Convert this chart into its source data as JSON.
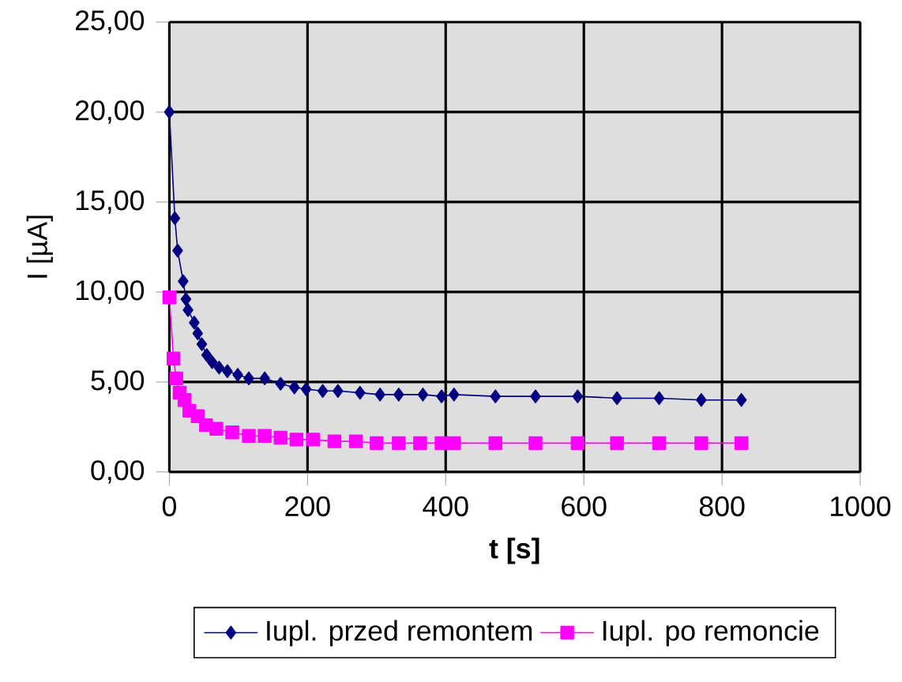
{
  "chart_data": {
    "type": "line",
    "xlabel": "t [s]",
    "ylabel": "I [µA]",
    "xlim": [
      0,
      1000
    ],
    "xticks": [
      0,
      200,
      400,
      600,
      800,
      1000
    ],
    "ylim": [
      0,
      25
    ],
    "yticks": [
      {
        "value": 0,
        "label": "0,00"
      },
      {
        "value": 5,
        "label": "5,00"
      },
      {
        "value": 10,
        "label": "10,00"
      },
      {
        "value": 15,
        "label": "15,00"
      },
      {
        "value": 20,
        "label": "20,00"
      },
      {
        "value": 25,
        "label": "25,00"
      }
    ],
    "grid": true,
    "legend": "bottom",
    "series": [
      {
        "name": "Iupl. przed remontem",
        "color": "#000080",
        "marker": "diamond",
        "x": [
          0,
          8,
          12,
          20,
          24,
          27,
          36,
          41,
          47,
          54,
          62,
          72,
          84,
          99,
          115,
          138,
          161,
          181,
          198,
          222,
          244,
          276,
          305,
          332,
          367,
          394,
          412,
          472,
          530,
          591,
          648,
          709,
          770,
          828
        ],
        "values": [
          20.0,
          14.1,
          12.3,
          10.6,
          9.6,
          9.0,
          8.3,
          7.7,
          7.1,
          6.5,
          6.1,
          5.8,
          5.6,
          5.4,
          5.2,
          5.2,
          4.9,
          4.7,
          4.6,
          4.5,
          4.5,
          4.4,
          4.3,
          4.3,
          4.3,
          4.2,
          4.3,
          4.2,
          4.2,
          4.2,
          4.1,
          4.1,
          4.0,
          4.0
        ]
      },
      {
        "name": "Iupl. po remoncie",
        "color": "#ff00ff",
        "marker": "square",
        "x": [
          0,
          6,
          10,
          15,
          22,
          29,
          41,
          53,
          68,
          91,
          115,
          138,
          161,
          184,
          208,
          239,
          270,
          300,
          332,
          363,
          394,
          412,
          472,
          530,
          591,
          648,
          709,
          770,
          828
        ],
        "values": [
          9.7,
          6.3,
          5.2,
          4.4,
          4.0,
          3.4,
          3.1,
          2.6,
          2.4,
          2.2,
          2.0,
          2.0,
          1.9,
          1.8,
          1.8,
          1.7,
          1.7,
          1.6,
          1.6,
          1.6,
          1.6,
          1.6,
          1.6,
          1.6,
          1.6,
          1.6,
          1.6,
          1.6,
          1.6
        ]
      }
    ]
  }
}
